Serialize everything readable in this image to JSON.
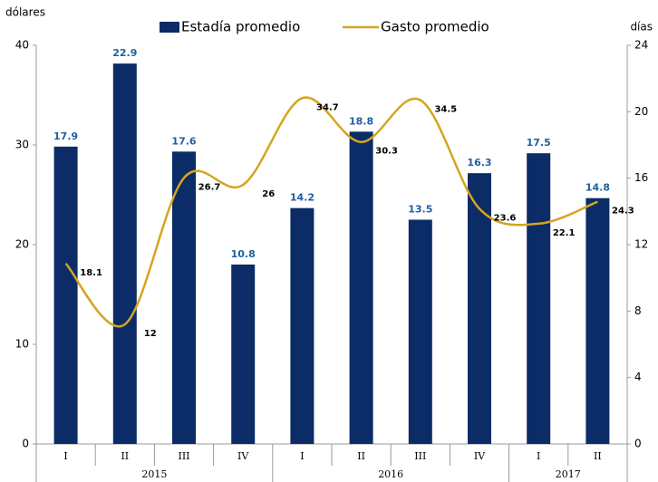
{
  "chart_data": {
    "type": "bar+line",
    "y_label": "dólares",
    "y2_label": "días",
    "categories": [
      "I",
      "II",
      "III",
      "IV",
      "I",
      "II",
      "III",
      "IV",
      "I",
      "II"
    ],
    "years": [
      "2015",
      null,
      null,
      null,
      "2016",
      null,
      null,
      null,
      "2017",
      null
    ],
    "series": [
      {
        "name": "Estadía promedio",
        "type": "bar",
        "axis": "y2",
        "color": "#0b2c66",
        "label_color": "#1f5f9f",
        "values": [
          17.9,
          22.9,
          17.6,
          10.8,
          14.2,
          18.8,
          13.5,
          16.3,
          17.5,
          14.8
        ]
      },
      {
        "name": "Gasto promedio",
        "type": "line",
        "axis": "y",
        "color": "#d4a520",
        "label_color": "#000000",
        "values": [
          18.1,
          12.0,
          26.7,
          26.0,
          34.7,
          30.3,
          34.5,
          23.6,
          22.1,
          24.3
        ]
      }
    ],
    "ylim": [
      0,
      40
    ],
    "yticks": [
      0,
      10,
      20,
      30,
      40
    ],
    "y2lim": [
      0,
      24
    ],
    "y2ticks": [
      0,
      4,
      8,
      12,
      16,
      20,
      24
    ],
    "legend": "top",
    "grid": false
  }
}
